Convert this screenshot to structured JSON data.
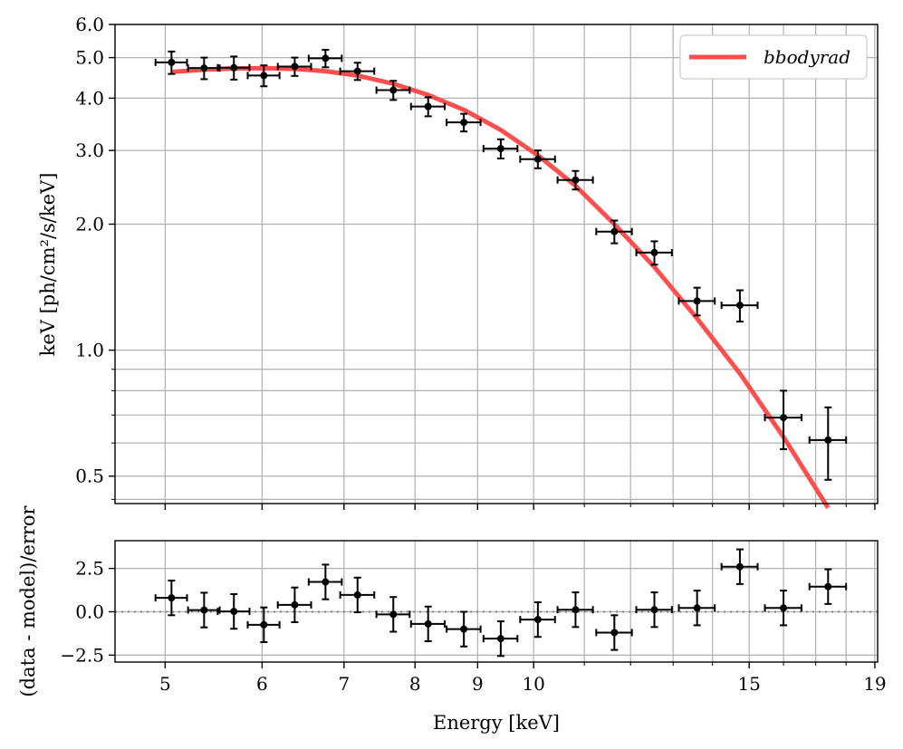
{
  "chart_data": [
    {
      "type": "scatter",
      "title": "",
      "ylabel": "keV [ph/cm²/s/keV]",
      "xlabel": "",
      "xscale": "log",
      "yscale": "log",
      "xlim": [
        4.55,
        19.1
      ],
      "ylim": [
        0.43,
        6.0
      ],
      "xticks": [
        5,
        6,
        7,
        8,
        9,
        10,
        15,
        19
      ],
      "yticks": [
        0.5,
        1.0,
        2.0,
        3.0,
        4.0,
        5.0,
        6.0
      ],
      "ytick_labels": [
        "0.5",
        "1.0",
        "2.0",
        "3.0",
        "4.0",
        "5.0",
        "6.0"
      ],
      "grid": true,
      "legend": {
        "position": "top-right",
        "entries": [
          {
            "name": "bbodyrad",
            "color": "#ff4545"
          }
        ]
      },
      "series": [
        {
          "name": "data",
          "color": "#000000",
          "points": [
            {
              "x": 5.06,
              "xerr": 0.15,
              "y": 4.87,
              "yerr": 0.3
            },
            {
              "x": 5.38,
              "xerr": 0.16,
              "y": 4.72,
              "yerr": 0.28
            },
            {
              "x": 5.69,
              "xerr": 0.17,
              "y": 4.73,
              "yerr": 0.3
            },
            {
              "x": 6.02,
              "xerr": 0.18,
              "y": 4.53,
              "yerr": 0.26
            },
            {
              "x": 6.38,
              "xerr": 0.2,
              "y": 4.76,
              "yerr": 0.24
            },
            {
              "x": 6.76,
              "xerr": 0.21,
              "y": 4.98,
              "yerr": 0.24
            },
            {
              "x": 7.18,
              "xerr": 0.23,
              "y": 4.64,
              "yerr": 0.22
            },
            {
              "x": 7.68,
              "xerr": 0.24,
              "y": 4.18,
              "yerr": 0.22
            },
            {
              "x": 8.2,
              "xerr": 0.26,
              "y": 3.82,
              "yerr": 0.2
            },
            {
              "x": 8.77,
              "xerr": 0.28,
              "y": 3.5,
              "yerr": 0.17
            },
            {
              "x": 9.4,
              "xerr": 0.3,
              "y": 3.03,
              "yerr": 0.16
            },
            {
              "x": 10.08,
              "xerr": 0.33,
              "y": 2.86,
              "yerr": 0.14
            },
            {
              "x": 10.82,
              "xerr": 0.36,
              "y": 2.55,
              "yerr": 0.13
            },
            {
              "x": 11.64,
              "xerr": 0.39,
              "y": 1.92,
              "yerr": 0.12
            },
            {
              "x": 12.55,
              "xerr": 0.42,
              "y": 1.71,
              "yerr": 0.11
            },
            {
              "x": 13.6,
              "xerr": 0.46,
              "y": 1.31,
              "yerr": 0.1
            },
            {
              "x": 14.74,
              "xerr": 0.5,
              "y": 1.28,
              "yerr": 0.11
            },
            {
              "x": 16.0,
              "xerr": 0.55,
              "y": 0.69,
              "yerr": 0.11
            },
            {
              "x": 17.4,
              "xerr": 0.6,
              "y": 0.61,
              "yerr": 0.12
            }
          ]
        },
        {
          "name": "bbodyrad",
          "color": "#ff4545",
          "x": [
            5.06,
            5.38,
            5.69,
            6.02,
            6.38,
            6.76,
            7.18,
            7.68,
            8.2,
            8.77,
            9.4,
            10.08,
            10.82,
            11.64,
            12.55,
            13.6,
            14.74,
            16.0,
            17.4
          ],
          "y": [
            4.62,
            4.68,
            4.71,
            4.72,
            4.7,
            4.64,
            4.53,
            4.33,
            4.07,
            3.75,
            3.36,
            2.92,
            2.47,
            2.0,
            1.58,
            1.19,
            0.88,
            0.62,
            0.42
          ]
        }
      ]
    },
    {
      "type": "scatter",
      "title": "",
      "xlabel": "Energy [keV]",
      "ylabel": "(data - model)/error",
      "xscale": "log",
      "xlim": [
        4.55,
        19.1
      ],
      "ylim": [
        -2.9,
        4.1
      ],
      "xticks": [
        5,
        6,
        7,
        8,
        9,
        10,
        15,
        19
      ],
      "xtick_labels": [
        "5",
        "6",
        "7",
        "8",
        "9",
        "10",
        "15",
        "19"
      ],
      "yticks": [
        2.5,
        0.0,
        -2.5
      ],
      "ytick_labels": [
        "2.5",
        "0.0",
        "−2.5"
      ],
      "grid": true,
      "zero_line": {
        "y": 0.0,
        "color": "#808080",
        "style": "dotted"
      },
      "series": [
        {
          "name": "residuals",
          "color": "#000000",
          "points": [
            {
              "x": 5.06,
              "xerr": 0.15,
              "y": 0.8,
              "yerr": 1.0
            },
            {
              "x": 5.38,
              "xerr": 0.16,
              "y": 0.1,
              "yerr": 1.0
            },
            {
              "x": 5.69,
              "xerr": 0.17,
              "y": 0.02,
              "yerr": 1.0
            },
            {
              "x": 6.02,
              "xerr": 0.18,
              "y": -0.75,
              "yerr": 1.0
            },
            {
              "x": 6.38,
              "xerr": 0.2,
              "y": 0.4,
              "yerr": 1.0
            },
            {
              "x": 6.76,
              "xerr": 0.21,
              "y": 1.72,
              "yerr": 1.0
            },
            {
              "x": 7.18,
              "xerr": 0.23,
              "y": 0.97,
              "yerr": 1.0
            },
            {
              "x": 7.68,
              "xerr": 0.24,
              "y": -0.15,
              "yerr": 1.0
            },
            {
              "x": 8.2,
              "xerr": 0.26,
              "y": -0.7,
              "yerr": 1.0
            },
            {
              "x": 8.77,
              "xerr": 0.28,
              "y": -1.0,
              "yerr": 1.0
            },
            {
              "x": 9.4,
              "xerr": 0.3,
              "y": -1.55,
              "yerr": 1.0
            },
            {
              "x": 10.08,
              "xerr": 0.33,
              "y": -0.45,
              "yerr": 1.0
            },
            {
              "x": 10.82,
              "xerr": 0.36,
              "y": 0.12,
              "yerr": 1.0
            },
            {
              "x": 11.64,
              "xerr": 0.39,
              "y": -1.2,
              "yerr": 1.0
            },
            {
              "x": 12.55,
              "xerr": 0.42,
              "y": 0.12,
              "yerr": 1.0
            },
            {
              "x": 13.6,
              "xerr": 0.46,
              "y": 0.22,
              "yerr": 1.0
            },
            {
              "x": 14.74,
              "xerr": 0.5,
              "y": 2.6,
              "yerr": 1.0
            },
            {
              "x": 16.0,
              "xerr": 0.55,
              "y": 0.22,
              "yerr": 1.0
            },
            {
              "x": 17.4,
              "xerr": 0.6,
              "y": 1.45,
              "yerr": 1.0
            }
          ]
        }
      ]
    }
  ]
}
